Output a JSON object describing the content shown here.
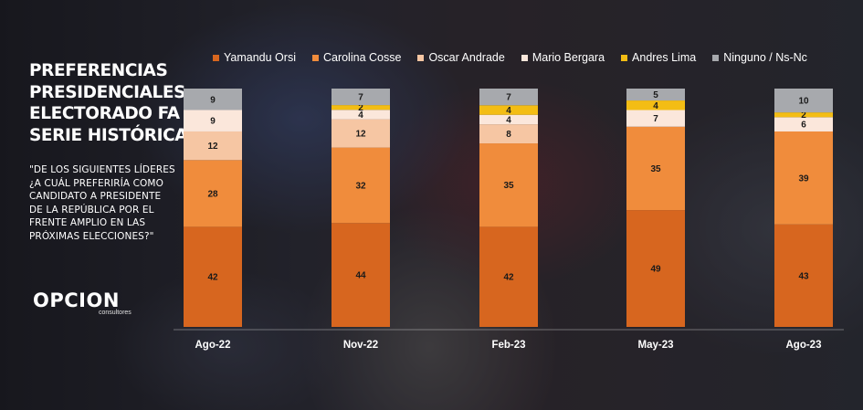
{
  "title_lines": [
    "PREFERENCIAS",
    "PRESIDENCIALES",
    "ELECTORADO FA",
    "SERIE HISTÓRICA"
  ],
  "question_lines": [
    "\"DE LOS SIGUIENTES LÍDERES",
    "¿A CUÁL PREFERIRÍA COMO",
    "CANDIDATO A PRESIDENTE",
    "DE LA REPÚBLICA POR EL",
    "FRENTE AMPLIO EN LAS",
    "PRÓXIMAS ELECCIONES?\""
  ],
  "logo": {
    "word": "OPCION",
    "sub": "consultores"
  },
  "chart_data": {
    "type": "bar",
    "stacked": true,
    "categories": [
      "Ago-22",
      "Nov-22",
      "Feb-23",
      "May-23",
      "Ago-23"
    ],
    "series": [
      {
        "name": "Yamandu Orsi",
        "color": "#d7661f",
        "values": [
          42,
          44,
          42,
          49,
          43
        ]
      },
      {
        "name": "Carolina Cosse",
        "color": "#f08c3c",
        "values": [
          28,
          32,
          35,
          35,
          39
        ]
      },
      {
        "name": "Oscar Andrade",
        "color": "#f6c6a3",
        "values": [
          12,
          12,
          8,
          0,
          0
        ]
      },
      {
        "name": "Mario Bergara",
        "color": "#fbe7db",
        "values": [
          9,
          4,
          4,
          7,
          6
        ]
      },
      {
        "name": "Andres Lima",
        "color": "#f3bd14",
        "values": [
          0,
          2,
          4,
          4,
          2
        ]
      },
      {
        "name": "Ninguno / Ns-Nc",
        "color": "#a7a9ad",
        "values": [
          9,
          7,
          7,
          5,
          10
        ]
      }
    ],
    "ylim": [
      0,
      100
    ],
    "legend_position": "top",
    "grid": false
  }
}
